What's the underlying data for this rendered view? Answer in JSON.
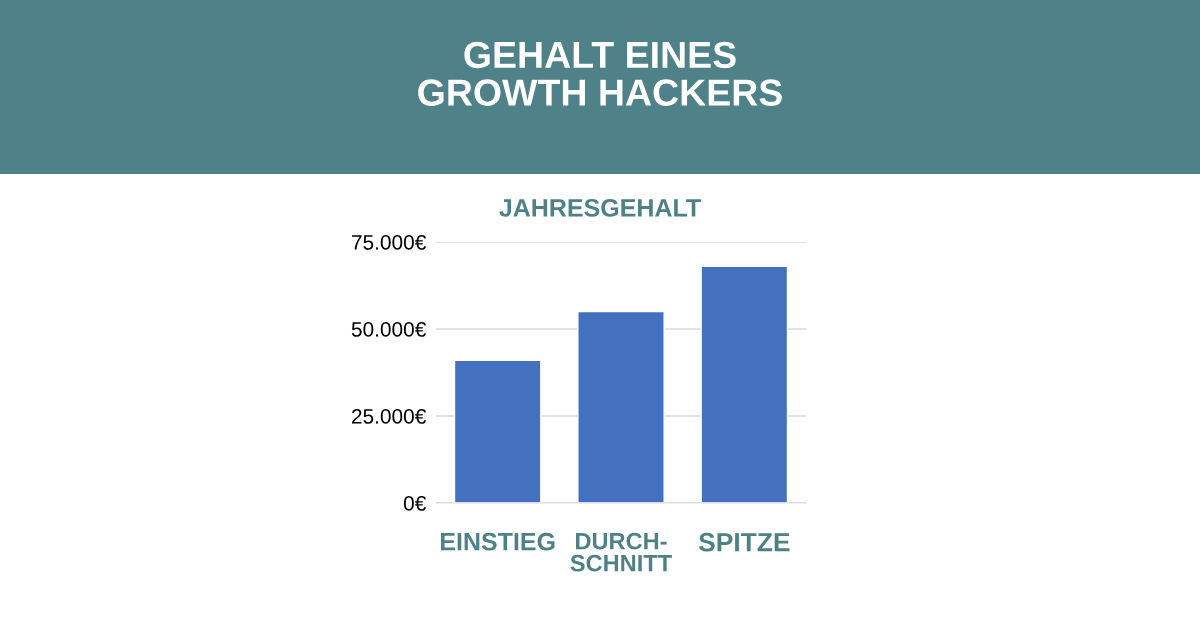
{
  "chart_data": {
    "type": "bar",
    "title": "GEHALT EINES\nGROWTH HACKERS",
    "ylabel": "JAHRESGEHALT",
    "categories": [
      "EINSTIEG",
      "DURCH-\nSCHNITT",
      "SPITZE"
    ],
    "values": [
      41000,
      55000,
      68000
    ],
    "color": "#4470c0",
    "ylim": [
      0,
      75000
    ],
    "yticks": [
      {
        "value": 0,
        "label": "0€"
      },
      {
        "value": 25000,
        "label": "25.000€"
      },
      {
        "value": 50000,
        "label": "50.000€"
      },
      {
        "value": 75000,
        "label": "75.000€"
      }
    ],
    "grid": "y"
  }
}
